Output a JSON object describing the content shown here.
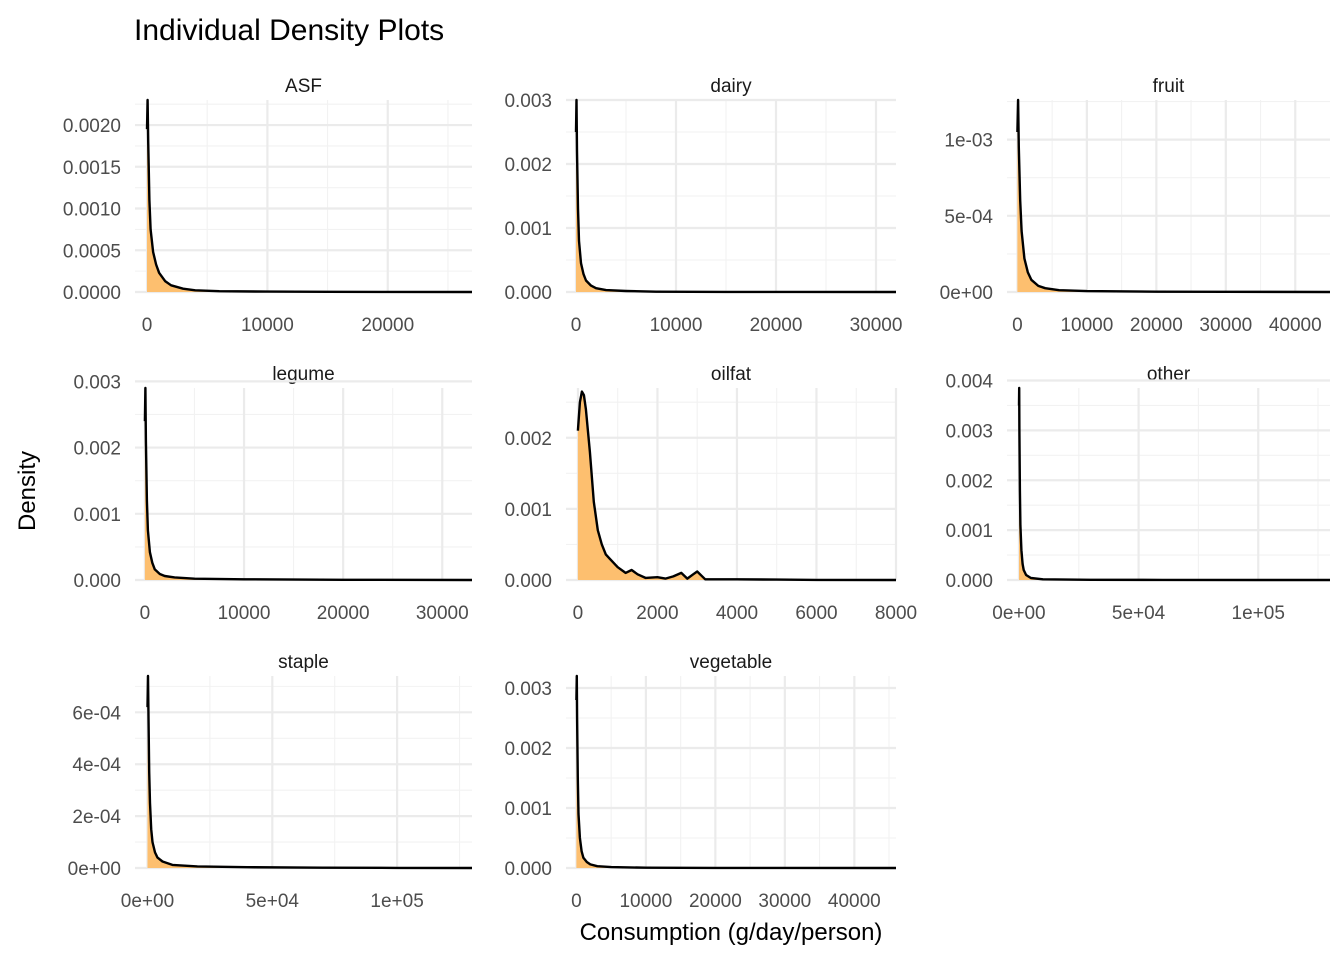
{
  "chart_data": {
    "type": "area",
    "title": "Individual Density Plots",
    "xlabel": "Consumption (g/day/person)",
    "ylabel": "Density",
    "grid": true,
    "legend": "none",
    "colors": {
      "fill": "#fdbf6f",
      "line": "#000000",
      "grid": "#ebebeb"
    },
    "panels": [
      {
        "name": "ASF",
        "xlim": [
          -1000,
          27000
        ],
        "ylim": [
          0,
          0.0023
        ],
        "xticks": [
          0,
          10000,
          20000
        ],
        "xtick_labels": [
          "0",
          "10000",
          "20000"
        ],
        "yticks": [
          0,
          0.0005,
          0.001,
          0.0015,
          0.002
        ],
        "ytick_labels": [
          "0.0000",
          "0.0005",
          "0.0010",
          "0.0015",
          "0.0020"
        ],
        "x": [
          0,
          50,
          100,
          200,
          300,
          500,
          750,
          1000,
          1500,
          2000,
          3000,
          4000,
          6000,
          10000,
          15000,
          20000,
          27000
        ],
        "y": [
          0.00195,
          0.0023,
          0.0018,
          0.0011,
          0.00075,
          0.00048,
          0.00033,
          0.00023,
          0.00013,
          8e-05,
          4e-05,
          2e-05,
          1e-05,
          5e-06,
          2e-06,
          1e-06,
          0
        ]
      },
      {
        "name": "dairy",
        "xlim": [
          -1000,
          32000
        ],
        "ylim": [
          0,
          0.003
        ],
        "xticks": [
          0,
          10000,
          20000,
          30000
        ],
        "xtick_labels": [
          "0",
          "10000",
          "20000",
          "30000"
        ],
        "yticks": [
          0,
          0.001,
          0.002,
          0.003
        ],
        "ytick_labels": [
          "0.000",
          "0.001",
          "0.002",
          "0.003"
        ],
        "x": [
          0,
          50,
          100,
          200,
          300,
          500,
          750,
          1000,
          1500,
          2000,
          3000,
          5000,
          8000,
          15000,
          22000,
          32000
        ],
        "y": [
          0.0025,
          0.003,
          0.0022,
          0.0013,
          0.0008,
          0.00045,
          0.00028,
          0.00018,
          0.0001,
          6e-05,
          3e-05,
          1.5e-05,
          5e-06,
          2e-06,
          1e-06,
          0
        ]
      },
      {
        "name": "fruit",
        "xlim": [
          -1500,
          45000
        ],
        "ylim": [
          0,
          0.00126
        ],
        "xticks": [
          0,
          10000,
          20000,
          30000,
          40000
        ],
        "xtick_labels": [
          "0",
          "10000",
          "20000",
          "30000",
          "40000"
        ],
        "yticks": [
          0,
          0.0005,
          0.001
        ],
        "ytick_labels": [
          "0e+00",
          "5e-04",
          "1e-03"
        ],
        "x": [
          0,
          100,
          200,
          400,
          600,
          1000,
          1500,
          2000,
          3000,
          4000,
          6000,
          10000,
          20000,
          30000,
          45000
        ],
        "y": [
          0.00105,
          0.00126,
          0.00095,
          0.0006,
          0.0004,
          0.00022,
          0.00013,
          8e-05,
          4e-05,
          2.5e-05,
          1.2e-05,
          6e-06,
          2e-06,
          1e-06,
          0
        ]
      },
      {
        "name": "legume",
        "xlim": [
          -1000,
          33000
        ],
        "ylim": [
          0,
          0.0029
        ],
        "xticks": [
          0,
          10000,
          20000,
          30000
        ],
        "xtick_labels": [
          "0",
          "10000",
          "20000",
          "30000"
        ],
        "yticks": [
          0,
          0.001,
          0.002,
          0.003
        ],
        "ytick_labels": [
          "0.000",
          "0.001",
          "0.002",
          "0.003"
        ],
        "x": [
          0,
          50,
          100,
          200,
          300,
          500,
          750,
          1000,
          1500,
          2000,
          3000,
          5000,
          10000,
          20000,
          33000
        ],
        "y": [
          0.0024,
          0.0029,
          0.0021,
          0.0012,
          0.00075,
          0.00042,
          0.00026,
          0.00016,
          9e-05,
          6e-05,
          4e-05,
          2e-05,
          1e-05,
          3e-06,
          0
        ]
      },
      {
        "name": "oilfat",
        "xlim": [
          -300,
          8000
        ],
        "ylim": [
          0,
          0.0027
        ],
        "xticks": [
          0,
          2000,
          4000,
          6000,
          8000
        ],
        "xtick_labels": [
          "0",
          "2000",
          "4000",
          "6000",
          "8000"
        ],
        "yticks": [
          0,
          0.001,
          0.002
        ],
        "ytick_labels": [
          "0.000",
          "0.001",
          "0.002"
        ],
        "x": [
          0,
          50,
          100,
          150,
          200,
          300,
          400,
          500,
          600,
          700,
          800,
          1000,
          1200,
          1350,
          1500,
          1700,
          2000,
          2200,
          2400,
          2600,
          2750,
          2900,
          3000,
          3200,
          4000,
          5000,
          6000,
          8000
        ],
        "y": [
          0.0021,
          0.0025,
          0.00265,
          0.0026,
          0.0024,
          0.0018,
          0.0011,
          0.0007,
          0.0005,
          0.00036,
          0.0003,
          0.00018,
          0.0001,
          0.00014,
          8e-05,
          3e-05,
          4e-05,
          2e-05,
          5e-05,
          0.0001,
          2e-05,
          8e-05,
          0.00012,
          1e-05,
          1e-05,
          5e-06,
          2e-06,
          0
        ]
      },
      {
        "name": "other",
        "xlim": [
          -5000,
          130000
        ],
        "ylim": [
          0,
          0.00385
        ],
        "xticks": [
          0,
          50000,
          100000
        ],
        "xtick_labels": [
          "0e+00",
          "5e+04",
          "1e+05"
        ],
        "yticks": [
          0,
          0.001,
          0.002,
          0.003,
          0.004
        ],
        "ytick_labels": [
          "0.000",
          "0.001",
          "0.002",
          "0.003",
          "0.004"
        ],
        "x": [
          0,
          100,
          200,
          400,
          600,
          1000,
          1500,
          2000,
          3000,
          5000,
          10000,
          30000,
          60000,
          100000,
          130000
        ],
        "y": [
          0.0035,
          0.00385,
          0.003,
          0.0018,
          0.0011,
          0.0006,
          0.00032,
          0.0002,
          0.0001,
          4e-05,
          1.5e-05,
          5e-06,
          2e-06,
          1e-06,
          0
        ]
      },
      {
        "name": "staple",
        "xlim": [
          -5000,
          130000
        ],
        "ylim": [
          0,
          0.00074
        ],
        "xticks": [
          0,
          50000,
          100000
        ],
        "xtick_labels": [
          "0e+00",
          "5e+04",
          "1e+05"
        ],
        "yticks": [
          0,
          0.0002,
          0.0004,
          0.0006
        ],
        "ytick_labels": [
          "0e+00",
          "2e-04",
          "4e-04",
          "6e-04"
        ],
        "x": [
          0,
          200,
          400,
          700,
          1000,
          1500,
          2000,
          3000,
          4000,
          6000,
          10000,
          20000,
          40000,
          70000,
          100000,
          130000
        ],
        "y": [
          0.00062,
          0.00074,
          0.00058,
          0.00037,
          0.00025,
          0.00015,
          0.0001,
          6e-05,
          4e-05,
          2.5e-05,
          1.2e-05,
          6e-06,
          3e-06,
          1e-06,
          5e-07,
          0
        ]
      },
      {
        "name": "vegetable",
        "xlim": [
          -1500,
          46000
        ],
        "ylim": [
          0,
          0.0032
        ],
        "xticks": [
          0,
          10000,
          20000,
          30000,
          40000
        ],
        "xtick_labels": [
          "0",
          "10000",
          "20000",
          "30000",
          "40000"
        ],
        "yticks": [
          0,
          0.001,
          0.002,
          0.003
        ],
        "ytick_labels": [
          "0.000",
          "0.001",
          "0.002",
          "0.003"
        ],
        "x": [
          0,
          50,
          100,
          200,
          300,
          500,
          750,
          1000,
          1500,
          2000,
          3000,
          5000,
          10000,
          20000,
          30000,
          46000
        ],
        "y": [
          0.0028,
          0.0032,
          0.0025,
          0.0015,
          0.0009,
          0.0005,
          0.00028,
          0.00017,
          0.0001,
          6e-05,
          3e-05,
          1.5e-05,
          5e-06,
          2e-06,
          1e-06,
          0
        ]
      }
    ]
  }
}
